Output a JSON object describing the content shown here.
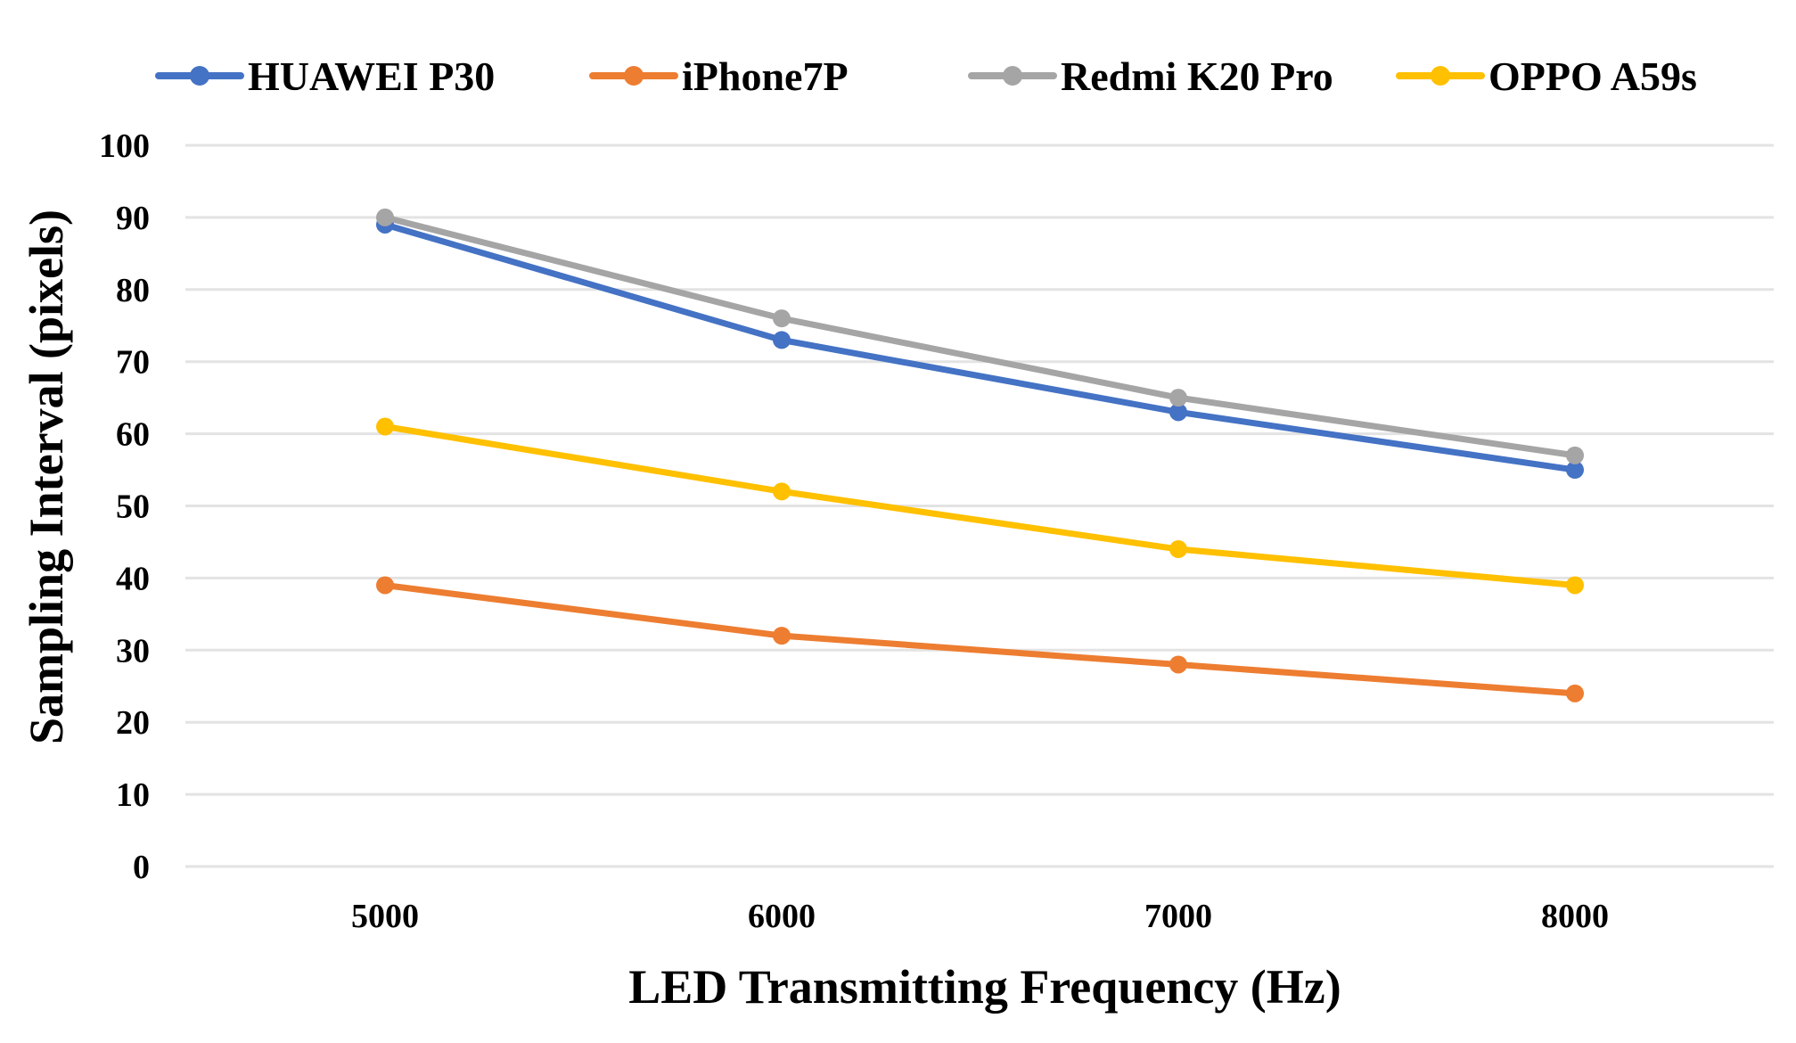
{
  "chart_data": {
    "type": "line",
    "title": "",
    "xlabel": "LED Transmitting Frequency (Hz)",
    "ylabel": "Sampling Interval (pixels)",
    "categories": [
      "5000",
      "6000",
      "7000",
      "8000"
    ],
    "ylim": [
      0,
      100
    ],
    "yticks": [
      "0",
      "10",
      "20",
      "30",
      "40",
      "50",
      "60",
      "70",
      "80",
      "90",
      "100"
    ],
    "grid": true,
    "legend_position": "top",
    "series": [
      {
        "name": "HUAWEI P30",
        "color": "#4472c4",
        "values": [
          89,
          73,
          63,
          55
        ]
      },
      {
        "name": "iPhone7P",
        "color": "#ed7d31",
        "values": [
          39,
          32,
          28,
          24
        ]
      },
      {
        "name": "Redmi K20 Pro",
        "color": "#a5a5a5",
        "values": [
          90,
          76,
          65,
          57
        ]
      },
      {
        "name": "OPPO A59s",
        "color": "#ffc000",
        "values": [
          61,
          52,
          44,
          39
        ]
      }
    ]
  }
}
